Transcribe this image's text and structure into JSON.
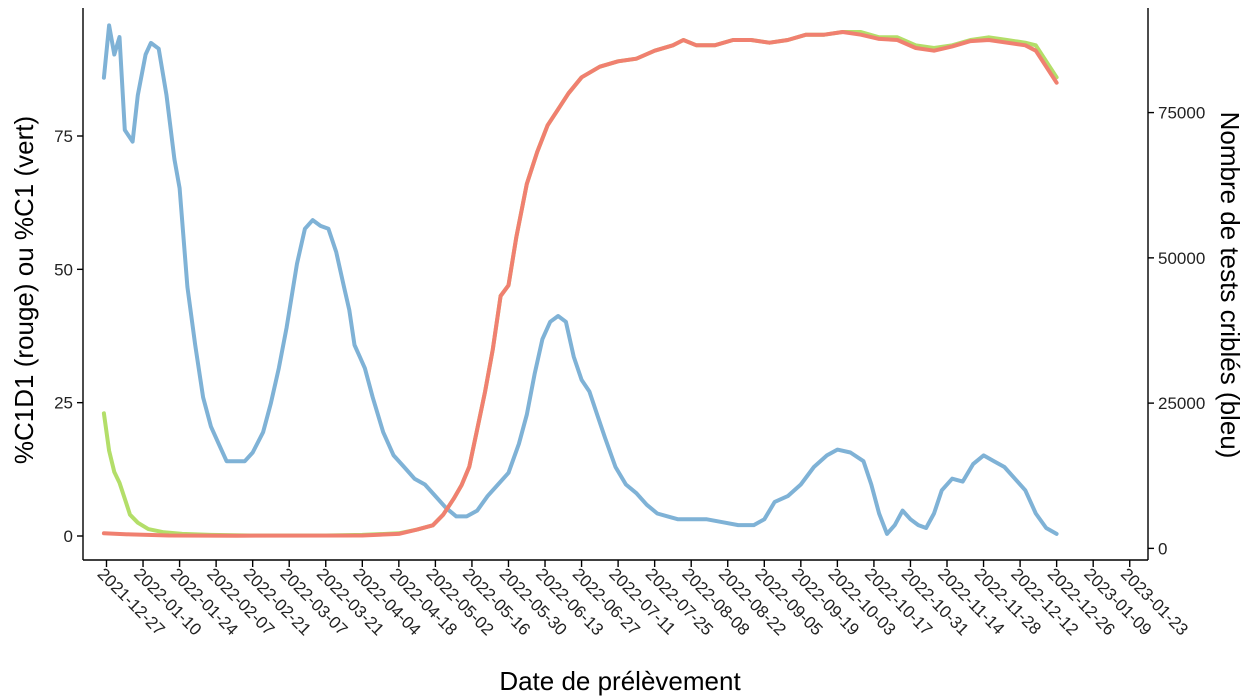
{
  "chart_data": {
    "type": "line",
    "xlabel": "Date de prélèvement",
    "ylabel_left": "%C1D1 (rouge) ou %C1 (vert)",
    "ylabel_right": "Nombre de tests criblés (bleu)",
    "x_tick_labels": [
      "2021-12-27",
      "2022-01-10",
      "2022-01-24",
      "2022-02-07",
      "2022-02-21",
      "2022-03-07",
      "2022-03-21",
      "2022-04-04",
      "2022-04-18",
      "2022-05-02",
      "2022-05-16",
      "2022-05-30",
      "2022-06-13",
      "2022-06-27",
      "2022-07-11",
      "2022-07-25",
      "2022-08-08",
      "2022-08-22",
      "2022-09-05",
      "2022-09-19",
      "2022-10-03",
      "2022-10-17",
      "2022-10-31",
      "2022-11-14",
      "2022-11-28",
      "2022-12-12",
      "2022-12-26",
      "2023-01-09",
      "2023-01-23"
    ],
    "x_range": [
      "2021-12-18",
      "2023-01-30"
    ],
    "y_left_ticks": [
      "0",
      "25",
      "50",
      "75"
    ],
    "y_left_range": [
      -4.5,
      99
    ],
    "y_right_ticks": [
      "0",
      "25000",
      "50000",
      "75000"
    ],
    "y_right_range": [
      -2000,
      93000
    ],
    "grid": false,
    "legend": "none",
    "colors": {
      "red": "#f08070",
      "green": "#b3de69",
      "blue": "#7fb2d6"
    },
    "series": [
      {
        "color_key": "blue",
        "axis": "right",
        "points": [
          [
            "2021-12-26",
            81000
          ],
          [
            "2021-12-28",
            90000
          ],
          [
            "2021-12-30",
            85000
          ],
          [
            "2022-01-01",
            88000
          ],
          [
            "2022-01-03",
            72000
          ],
          [
            "2022-01-06",
            70000
          ],
          [
            "2022-01-08",
            78000
          ],
          [
            "2022-01-11",
            85000
          ],
          [
            "2022-01-13",
            87000
          ],
          [
            "2022-01-16",
            86000
          ],
          [
            "2022-01-19",
            78000
          ],
          [
            "2022-01-22",
            67000
          ],
          [
            "2022-01-24",
            62000
          ],
          [
            "2022-01-27",
            45000
          ],
          [
            "2022-01-30",
            35000
          ],
          [
            "2022-02-02",
            26000
          ],
          [
            "2022-02-05",
            21000
          ],
          [
            "2022-02-08",
            18000
          ],
          [
            "2022-02-11",
            15000
          ],
          [
            "2022-02-14",
            15000
          ],
          [
            "2022-02-18",
            15000
          ],
          [
            "2022-02-21",
            16500
          ],
          [
            "2022-02-25",
            20000
          ],
          [
            "2022-02-28",
            25000
          ],
          [
            "2022-03-03",
            31000
          ],
          [
            "2022-03-06",
            38000
          ],
          [
            "2022-03-10",
            49000
          ],
          [
            "2022-03-13",
            55000
          ],
          [
            "2022-03-16",
            56500
          ],
          [
            "2022-03-19",
            55500
          ],
          [
            "2022-03-22",
            55000
          ],
          [
            "2022-03-25",
            51000
          ],
          [
            "2022-03-28",
            45000
          ],
          [
            "2022-03-30",
            41000
          ],
          [
            "2022-04-01",
            35000
          ],
          [
            "2022-04-03",
            33000
          ],
          [
            "2022-04-05",
            31000
          ],
          [
            "2022-04-08",
            26000
          ],
          [
            "2022-04-12",
            20000
          ],
          [
            "2022-04-16",
            16000
          ],
          [
            "2022-04-20",
            14000
          ],
          [
            "2022-04-24",
            12000
          ],
          [
            "2022-04-28",
            11000
          ],
          [
            "2022-05-02",
            9000
          ],
          [
            "2022-05-06",
            7000
          ],
          [
            "2022-05-10",
            5500
          ],
          [
            "2022-05-14",
            5500
          ],
          [
            "2022-05-18",
            6500
          ],
          [
            "2022-05-22",
            9000
          ],
          [
            "2022-05-26",
            11000
          ],
          [
            "2022-05-30",
            13000
          ],
          [
            "2022-06-03",
            18000
          ],
          [
            "2022-06-06",
            23000
          ],
          [
            "2022-06-09",
            30000
          ],
          [
            "2022-06-12",
            36000
          ],
          [
            "2022-06-15",
            39000
          ],
          [
            "2022-06-18",
            40000
          ],
          [
            "2022-06-21",
            39000
          ],
          [
            "2022-06-24",
            33000
          ],
          [
            "2022-06-27",
            29000
          ],
          [
            "2022-06-30",
            27000
          ],
          [
            "2022-07-03",
            23000
          ],
          [
            "2022-07-06",
            19000
          ],
          [
            "2022-07-10",
            14000
          ],
          [
            "2022-07-14",
            11000
          ],
          [
            "2022-07-18",
            9500
          ],
          [
            "2022-07-22",
            7500
          ],
          [
            "2022-07-26",
            6000
          ],
          [
            "2022-07-30",
            5500
          ],
          [
            "2022-08-03",
            5000
          ],
          [
            "2022-08-08",
            5000
          ],
          [
            "2022-08-14",
            5000
          ],
          [
            "2022-08-20",
            4500
          ],
          [
            "2022-08-26",
            4000
          ],
          [
            "2022-09-01",
            4000
          ],
          [
            "2022-09-05",
            5000
          ],
          [
            "2022-09-09",
            8000
          ],
          [
            "2022-09-14",
            9000
          ],
          [
            "2022-09-19",
            11000
          ],
          [
            "2022-09-24",
            14000
          ],
          [
            "2022-09-29",
            16000
          ],
          [
            "2022-10-03",
            17000
          ],
          [
            "2022-10-08",
            16500
          ],
          [
            "2022-10-13",
            15000
          ],
          [
            "2022-10-16",
            11000
          ],
          [
            "2022-10-19",
            6000
          ],
          [
            "2022-10-22",
            2500
          ],
          [
            "2022-10-25",
            4000
          ],
          [
            "2022-10-28",
            6500
          ],
          [
            "2022-10-31",
            5000
          ],
          [
            "2022-11-03",
            4000
          ],
          [
            "2022-11-06",
            3500
          ],
          [
            "2022-11-09",
            6000
          ],
          [
            "2022-11-12",
            10000
          ],
          [
            "2022-11-16",
            12000
          ],
          [
            "2022-11-20",
            11500
          ],
          [
            "2022-11-24",
            14500
          ],
          [
            "2022-11-28",
            16000
          ],
          [
            "2022-12-02",
            15000
          ],
          [
            "2022-12-06",
            14000
          ],
          [
            "2022-12-10",
            12000
          ],
          [
            "2022-12-14",
            10000
          ],
          [
            "2022-12-18",
            6000
          ],
          [
            "2022-12-22",
            3500
          ],
          [
            "2022-12-26",
            2500
          ]
        ]
      },
      {
        "color_key": "green",
        "axis": "left",
        "points": [
          [
            "2021-12-26",
            23
          ],
          [
            "2021-12-28",
            16
          ],
          [
            "2021-12-30",
            12
          ],
          [
            "2022-01-01",
            10
          ],
          [
            "2022-01-03",
            7
          ],
          [
            "2022-01-05",
            4
          ],
          [
            "2022-01-08",
            2.5
          ],
          [
            "2022-01-12",
            1.3
          ],
          [
            "2022-01-18",
            0.7
          ],
          [
            "2022-01-25",
            0.4
          ],
          [
            "2022-02-05",
            0.2
          ],
          [
            "2022-02-20",
            0.1
          ],
          [
            "2022-03-07",
            0.1
          ],
          [
            "2022-03-21",
            0.1
          ],
          [
            "2022-04-04",
            0.2
          ],
          [
            "2022-04-18",
            0.5
          ],
          [
            "2022-04-25",
            1.2
          ],
          [
            "2022-05-01",
            2
          ],
          [
            "2022-05-05",
            4
          ],
          [
            "2022-05-09",
            7
          ],
          [
            "2022-05-12",
            9.5
          ],
          [
            "2022-05-15",
            13
          ],
          [
            "2022-05-18",
            20
          ],
          [
            "2022-05-21",
            27
          ],
          [
            "2022-05-24",
            35
          ],
          [
            "2022-05-27",
            45
          ],
          [
            "2022-05-30",
            47
          ],
          [
            "2022-06-02",
            56
          ],
          [
            "2022-06-06",
            66
          ],
          [
            "2022-06-10",
            72
          ],
          [
            "2022-06-14",
            77
          ],
          [
            "2022-06-18",
            80
          ],
          [
            "2022-06-22",
            83
          ],
          [
            "2022-06-27",
            86
          ],
          [
            "2022-07-04",
            88
          ],
          [
            "2022-07-11",
            89
          ],
          [
            "2022-07-18",
            89.5
          ],
          [
            "2022-07-25",
            91
          ],
          [
            "2022-08-01",
            92
          ],
          [
            "2022-08-05",
            93
          ],
          [
            "2022-08-10",
            92
          ],
          [
            "2022-08-17",
            92
          ],
          [
            "2022-08-24",
            93
          ],
          [
            "2022-08-31",
            93
          ],
          [
            "2022-09-07",
            92.5
          ],
          [
            "2022-09-14",
            93
          ],
          [
            "2022-09-21",
            94
          ],
          [
            "2022-09-28",
            94
          ],
          [
            "2022-10-05",
            94.5
          ],
          [
            "2022-10-12",
            94.5
          ],
          [
            "2022-10-19",
            93.5
          ],
          [
            "2022-10-26",
            93.5
          ],
          [
            "2022-11-02",
            92
          ],
          [
            "2022-11-09",
            91.5
          ],
          [
            "2022-11-16",
            92
          ],
          [
            "2022-11-23",
            93
          ],
          [
            "2022-11-30",
            93.5
          ],
          [
            "2022-12-07",
            93
          ],
          [
            "2022-12-14",
            92.5
          ],
          [
            "2022-12-18",
            92
          ],
          [
            "2022-12-22",
            89
          ],
          [
            "2022-12-26",
            86
          ]
        ]
      },
      {
        "color_key": "red",
        "axis": "left",
        "points": [
          [
            "2021-12-26",
            0.5
          ],
          [
            "2022-01-05",
            0.3
          ],
          [
            "2022-01-20",
            0.1
          ],
          [
            "2022-02-15",
            0.05
          ],
          [
            "2022-04-04",
            0.1
          ],
          [
            "2022-04-18",
            0.4
          ],
          [
            "2022-04-25",
            1.2
          ],
          [
            "2022-05-01",
            2
          ],
          [
            "2022-05-05",
            4
          ],
          [
            "2022-05-09",
            7
          ],
          [
            "2022-05-12",
            9.5
          ],
          [
            "2022-05-15",
            13
          ],
          [
            "2022-05-18",
            20
          ],
          [
            "2022-05-21",
            27
          ],
          [
            "2022-05-24",
            35
          ],
          [
            "2022-05-27",
            45
          ],
          [
            "2022-05-30",
            47
          ],
          [
            "2022-06-02",
            56
          ],
          [
            "2022-06-06",
            66
          ],
          [
            "2022-06-10",
            72
          ],
          [
            "2022-06-14",
            77
          ],
          [
            "2022-06-18",
            80
          ],
          [
            "2022-06-22",
            83
          ],
          [
            "2022-06-27",
            86
          ],
          [
            "2022-07-04",
            88
          ],
          [
            "2022-07-11",
            89
          ],
          [
            "2022-07-18",
            89.5
          ],
          [
            "2022-07-25",
            91
          ],
          [
            "2022-08-01",
            92
          ],
          [
            "2022-08-05",
            93
          ],
          [
            "2022-08-10",
            92
          ],
          [
            "2022-08-17",
            92
          ],
          [
            "2022-08-24",
            93
          ],
          [
            "2022-08-31",
            93
          ],
          [
            "2022-09-07",
            92.5
          ],
          [
            "2022-09-14",
            93
          ],
          [
            "2022-09-21",
            94
          ],
          [
            "2022-09-28",
            94
          ],
          [
            "2022-10-05",
            94.5
          ],
          [
            "2022-10-12",
            94
          ],
          [
            "2022-10-19",
            93.2
          ],
          [
            "2022-10-26",
            93
          ],
          [
            "2022-11-02",
            91.5
          ],
          [
            "2022-11-09",
            91
          ],
          [
            "2022-11-16",
            91.8
          ],
          [
            "2022-11-23",
            92.8
          ],
          [
            "2022-11-30",
            93
          ],
          [
            "2022-12-07",
            92.5
          ],
          [
            "2022-12-14",
            92
          ],
          [
            "2022-12-18",
            91
          ],
          [
            "2022-12-22",
            88
          ],
          [
            "2022-12-26",
            85
          ]
        ]
      }
    ]
  }
}
